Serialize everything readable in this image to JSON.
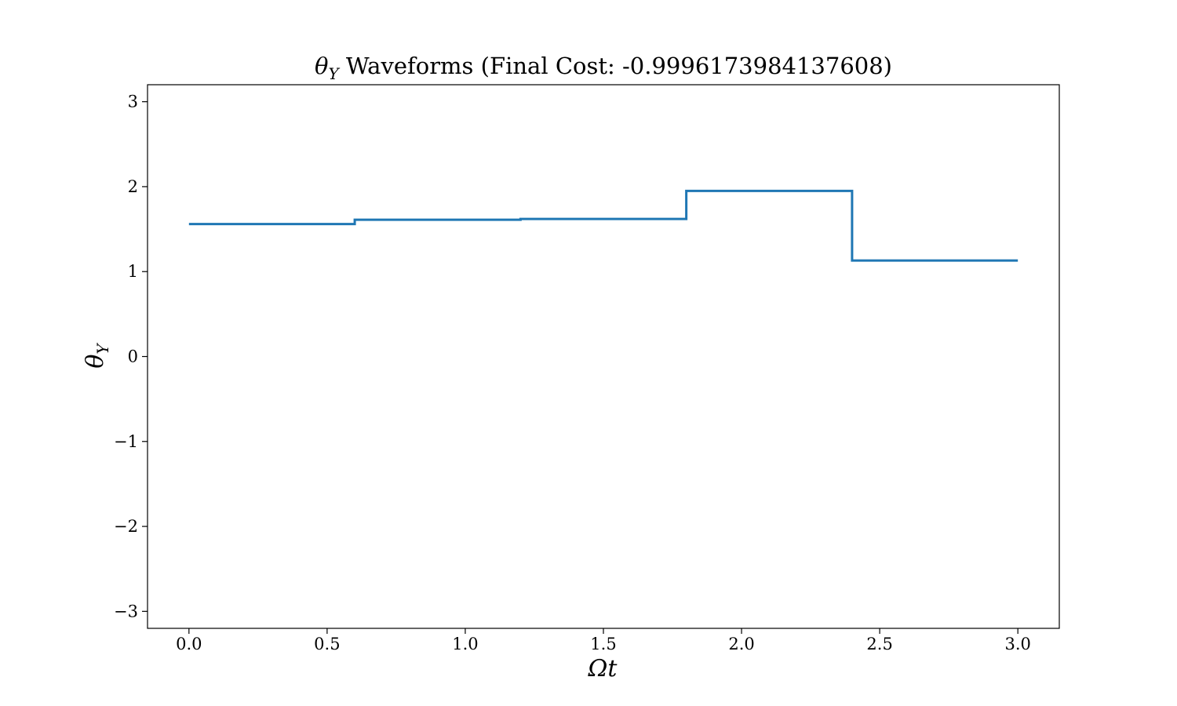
{
  "chart_data": {
    "type": "line",
    "step": "post",
    "title": {
      "symbol": "θ",
      "subscript": "Y",
      "text": " Waveforms (Final Cost: -0.9996173984137608)"
    },
    "xlabel": {
      "symbol": "Ωt"
    },
    "ylabel": {
      "symbol": "θ",
      "subscript": "Y"
    },
    "xlim": [
      -0.15,
      3.15
    ],
    "ylim": [
      -3.2,
      3.2
    ],
    "xticks": [
      0.0,
      0.5,
      1.0,
      1.5,
      2.0,
      2.5,
      3.0
    ],
    "xtick_labels": [
      "0.0",
      "0.5",
      "1.0",
      "1.5",
      "2.0",
      "2.5",
      "3.0"
    ],
    "yticks": [
      3,
      2,
      1,
      0,
      -1,
      -2,
      -3
    ],
    "ytick_labels": [
      "3",
      "2",
      "1",
      "0",
      "−1",
      "−2",
      "−3"
    ],
    "grid": false,
    "series": [
      {
        "color": "#1f77b4",
        "x": [
          0.0,
          0.6,
          1.2,
          1.8,
          2.4,
          3.0
        ],
        "y": [
          1.56,
          1.61,
          1.62,
          1.95,
          1.13,
          1.13
        ]
      }
    ]
  }
}
